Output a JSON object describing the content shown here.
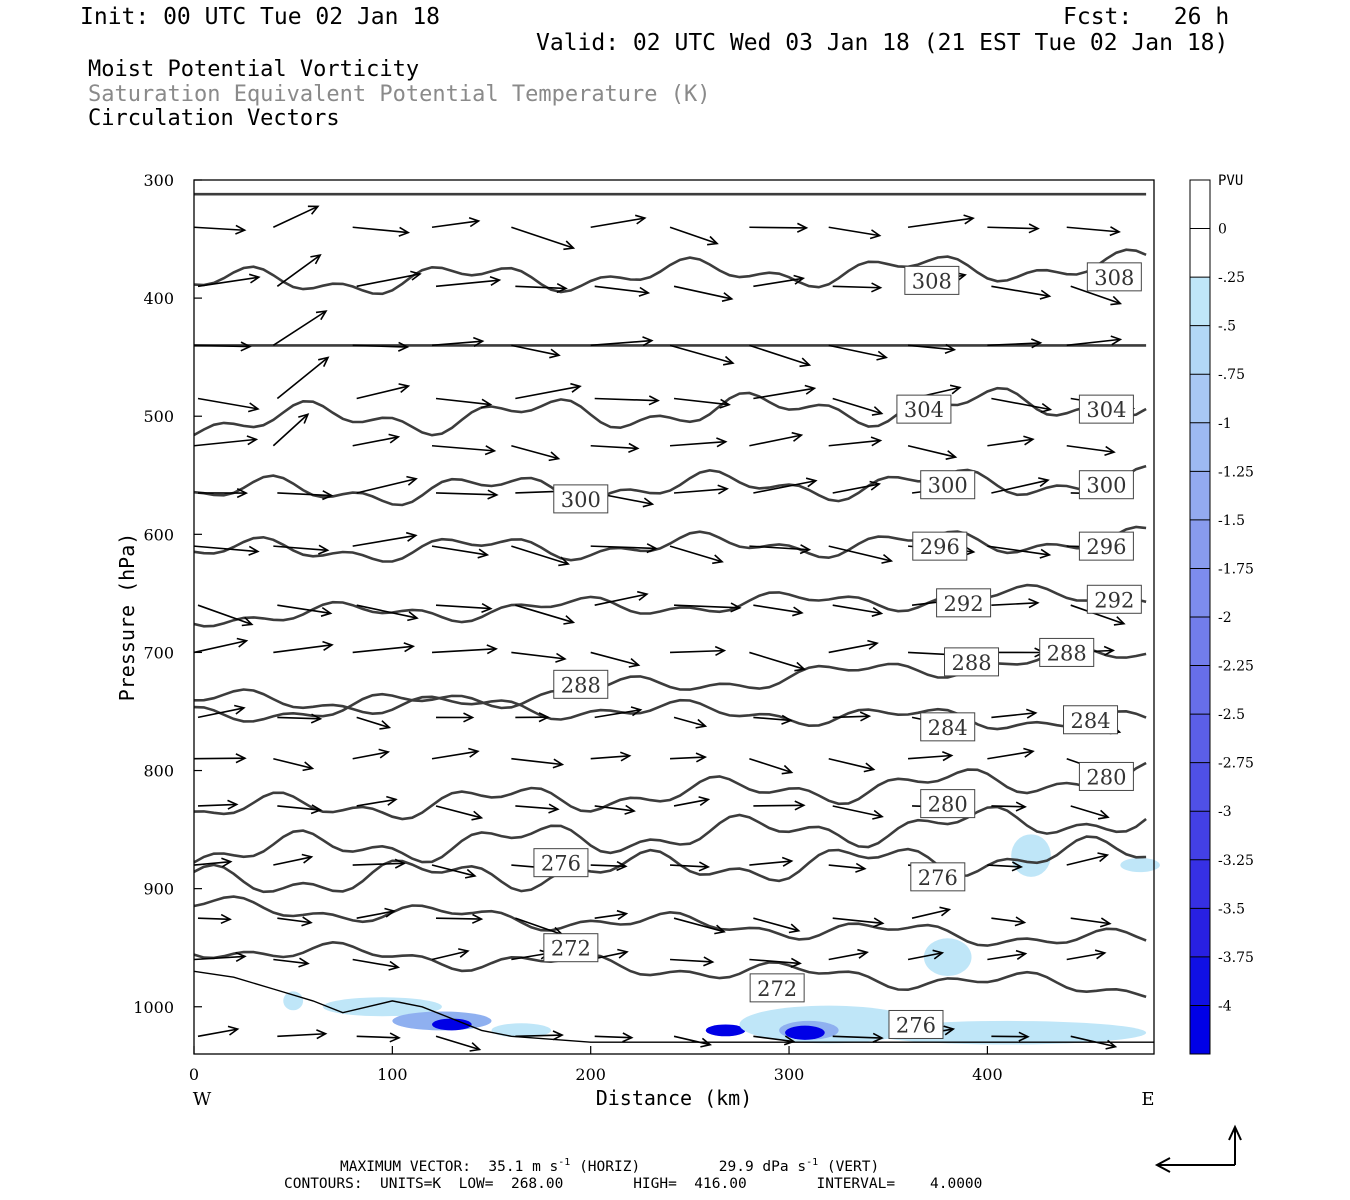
{
  "header": {
    "init": "Init: 00 UTC Tue 02 Jan 18",
    "fcst_label": "Fcst:",
    "fcst_value": "26 h",
    "valid": "Valid: 02 UTC Wed 03 Jan 18 (21 EST Tue 02 Jan 18)",
    "field1": "Moist Potential Vorticity",
    "field2": "Saturation Equivalent Potential Temperature (K)",
    "field3": "Circulation Vectors"
  },
  "footer": {
    "max_vector_label": "MAXIMUM VECTOR:",
    "horiz_value": "35.1",
    "horiz_unit": "m s",
    "horiz_suffix": "(HORIZ)",
    "vert_value": "29.9",
    "vert_unit": "dPa s",
    "vert_suffix": "(VERT)",
    "exponent": "-1",
    "contours_line": "CONTOURS:  UNITS=K  LOW=  268.00        HIGH=  416.00        INTERVAL=    4.0000"
  },
  "colors": {
    "contour": "#3c3c3c",
    "arrow": "#000000",
    "shade_light": "#bfe6f8",
    "shade_mid": "#8fb0f0",
    "shade_dark": "#0000e6"
  },
  "chart_data": {
    "type": "contour-cross-section",
    "xlabel": "Distance (km)",
    "ylabel": "Pressure (hPa)",
    "xlim": [
      0,
      484
    ],
    "ylim": [
      300,
      1040
    ],
    "y_scale": "linear (pressure decreasing upward)",
    "x_ticks": [
      "0",
      "100",
      "200",
      "300",
      "400"
    ],
    "y_ticks": [
      "300",
      "400",
      "500",
      "600",
      "700",
      "800",
      "900",
      "1000"
    ],
    "west_label": "W",
    "east_label": "E",
    "colorbar": {
      "title": "PVU",
      "ticks": [
        "0",
        "-.25",
        "-.5",
        "-.75",
        "-1",
        "-1.25",
        "-1.5",
        "-1.75",
        "-2",
        "-2.25",
        "-2.5",
        "-2.75",
        "-3",
        "-3.25",
        "-3.5",
        "-3.75",
        "-4"
      ],
      "colors": [
        "#ffffff",
        "#ffffff",
        "#bfe6f8",
        "#b2d8f6",
        "#a8c8f4",
        "#9db9f2",
        "#93aaf0",
        "#889bee",
        "#7d8ced",
        "#727deb",
        "#676ee9",
        "#5b5fe8",
        "#4f50e6",
        "#4340e5",
        "#3630e4",
        "#2820e3",
        "#1010e4",
        "#0000e6"
      ]
    },
    "contour_levels_K": [
      272,
      276,
      280,
      284,
      288,
      292,
      296,
      300,
      304,
      308
    ],
    "contour_labels": [
      {
        "text": "308",
        "x": 372,
        "p": 385
      },
      {
        "text": "308",
        "x": 464,
        "p": 382
      },
      {
        "text": "304",
        "x": 368,
        "p": 494
      },
      {
        "text": "304",
        "x": 460,
        "p": 494
      },
      {
        "text": "300",
        "x": 195,
        "p": 570
      },
      {
        "text": "300",
        "x": 380,
        "p": 558
      },
      {
        "text": "300",
        "x": 460,
        "p": 558
      },
      {
        "text": "296",
        "x": 376,
        "p": 610
      },
      {
        "text": "296",
        "x": 460,
        "p": 610
      },
      {
        "text": "292",
        "x": 388,
        "p": 658
      },
      {
        "text": "292",
        "x": 464,
        "p": 655
      },
      {
        "text": "288",
        "x": 195,
        "p": 727
      },
      {
        "text": "288",
        "x": 392,
        "p": 708
      },
      {
        "text": "288",
        "x": 440,
        "p": 700
      },
      {
        "text": "284",
        "x": 380,
        "p": 763
      },
      {
        "text": "284",
        "x": 452,
        "p": 757
      },
      {
        "text": "280",
        "x": 380,
        "p": 828
      },
      {
        "text": "280",
        "x": 460,
        "p": 805
      },
      {
        "text": "276",
        "x": 185,
        "p": 878
      },
      {
        "text": "276",
        "x": 375,
        "p": 890
      },
      {
        "text": "276",
        "x": 364,
        "p": 1015
      },
      {
        "text": "272",
        "x": 190,
        "p": 950
      },
      {
        "text": "272",
        "x": 294,
        "p": 984
      }
    ],
    "max_vector": {
      "horiz_m_s": 35.1,
      "vert_dPa_s": 29.9
    }
  }
}
